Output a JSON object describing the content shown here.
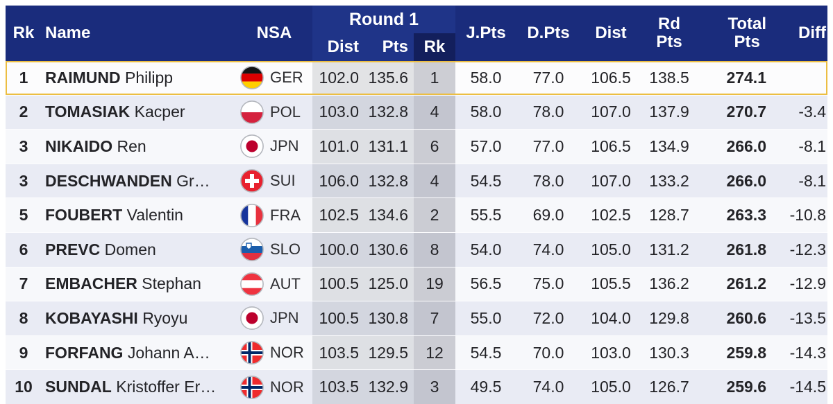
{
  "table": {
    "header": {
      "rk": "Rk",
      "name": "Name",
      "nsa": "NSA",
      "round1": {
        "title": "Round 1",
        "dist": "Dist",
        "pts": "Pts",
        "rk": "Rk"
      },
      "j_pts": "J.Pts",
      "d_pts": "D.Pts",
      "dist": "Dist",
      "rd_pts": "Rd\nPts",
      "total_pts": "Total\nPts",
      "diff": "Diff"
    },
    "rows": [
      {
        "rk": "1",
        "surname": "RAIMUND",
        "given": "Philipp",
        "nsa": "GER",
        "flag": "flag-germany",
        "r1_dist": "102.0",
        "r1_pts": "135.6",
        "r1_rk": "1",
        "j_pts": "58.0",
        "d_pts": "77.0",
        "dist": "106.5",
        "rd_pts": "138.5",
        "total": "274.1",
        "diff": "",
        "highlighted": true
      },
      {
        "rk": "2",
        "surname": "TOMASIAK",
        "given": "Kacper",
        "nsa": "POL",
        "flag": "flag-poland",
        "r1_dist": "103.0",
        "r1_pts": "132.8",
        "r1_rk": "4",
        "j_pts": "58.0",
        "d_pts": "78.0",
        "dist": "107.0",
        "rd_pts": "137.9",
        "total": "270.7",
        "diff": "-3.4",
        "highlighted": false
      },
      {
        "rk": "3",
        "surname": "NIKAIDO",
        "given": "Ren",
        "nsa": "JPN",
        "flag": "flag-japan",
        "r1_dist": "101.0",
        "r1_pts": "131.1",
        "r1_rk": "6",
        "j_pts": "57.0",
        "d_pts": "77.0",
        "dist": "106.5",
        "rd_pts": "134.9",
        "total": "266.0",
        "diff": "-8.1",
        "highlighted": false
      },
      {
        "rk": "3",
        "surname": "DESCHWANDEN",
        "given": "Gr…",
        "nsa": "SUI",
        "flag": "flag-switzerland",
        "r1_dist": "106.0",
        "r1_pts": "132.8",
        "r1_rk": "4",
        "j_pts": "54.5",
        "d_pts": "78.0",
        "dist": "107.0",
        "rd_pts": "133.2",
        "total": "266.0",
        "diff": "-8.1",
        "highlighted": false
      },
      {
        "rk": "5",
        "surname": "FOUBERT",
        "given": "Valentin",
        "nsa": "FRA",
        "flag": "flag-france",
        "r1_dist": "102.5",
        "r1_pts": "134.6",
        "r1_rk": "2",
        "j_pts": "55.5",
        "d_pts": "69.0",
        "dist": "102.5",
        "rd_pts": "128.7",
        "total": "263.3",
        "diff": "-10.8",
        "highlighted": false
      },
      {
        "rk": "6",
        "surname": "PREVC",
        "given": "Domen",
        "nsa": "SLO",
        "flag": "flag-slovenia",
        "r1_dist": "100.0",
        "r1_pts": "130.6",
        "r1_rk": "8",
        "j_pts": "54.0",
        "d_pts": "74.0",
        "dist": "105.0",
        "rd_pts": "131.2",
        "total": "261.8",
        "diff": "-12.3",
        "highlighted": false
      },
      {
        "rk": "7",
        "surname": "EMBACHER",
        "given": "Stephan",
        "nsa": "AUT",
        "flag": "flag-austria",
        "r1_dist": "100.5",
        "r1_pts": "125.0",
        "r1_rk": "19",
        "j_pts": "56.5",
        "d_pts": "75.0",
        "dist": "105.5",
        "rd_pts": "136.2",
        "total": "261.2",
        "diff": "-12.9",
        "highlighted": false
      },
      {
        "rk": "8",
        "surname": "KOBAYASHI",
        "given": "Ryoyu",
        "nsa": "JPN",
        "flag": "flag-japan",
        "r1_dist": "100.5",
        "r1_pts": "130.8",
        "r1_rk": "7",
        "j_pts": "55.0",
        "d_pts": "72.0",
        "dist": "104.0",
        "rd_pts": "129.8",
        "total": "260.6",
        "diff": "-13.5",
        "highlighted": false
      },
      {
        "rk": "9",
        "surname": "FORFANG",
        "given": "Johann A…",
        "nsa": "NOR",
        "flag": "flag-norway",
        "r1_dist": "103.5",
        "r1_pts": "129.5",
        "r1_rk": "12",
        "j_pts": "54.5",
        "d_pts": "70.0",
        "dist": "103.0",
        "rd_pts": "130.3",
        "total": "259.8",
        "diff": "-14.3",
        "highlighted": false
      },
      {
        "rk": "10",
        "surname": "SUNDAL",
        "given": "Kristoffer Er…",
        "nsa": "NOR",
        "flag": "flag-norway",
        "r1_dist": "103.5",
        "r1_pts": "132.9",
        "r1_rk": "3",
        "j_pts": "49.5",
        "d_pts": "74.0",
        "dist": "105.0",
        "rd_pts": "126.7",
        "total": "259.6",
        "diff": "-14.5",
        "highlighted": false
      }
    ]
  },
  "colors": {
    "header_navy": "#1a2c7c",
    "round1_navy": "#1f3488",
    "round1_rk_navy": "#131f5c",
    "highlight_gold": "#ecbe42",
    "row_odd": "#f7f8fb",
    "row_even": "#e9ebf4",
    "header_text": "#ffffff",
    "body_text": "#232327"
  }
}
